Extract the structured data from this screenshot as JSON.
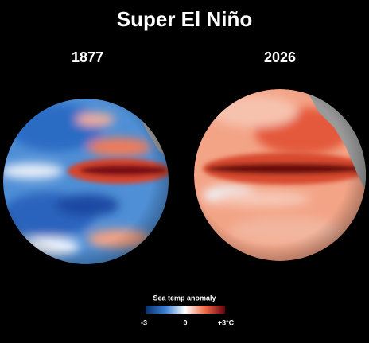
{
  "title": "Super El Niño",
  "globes": [
    {
      "label": "1877"
    },
    {
      "label": "2026"
    }
  ],
  "legend": {
    "title": "Sea temp anomaly",
    "labels": [
      "-3",
      "0",
      "+3°C"
    ]
  }
}
